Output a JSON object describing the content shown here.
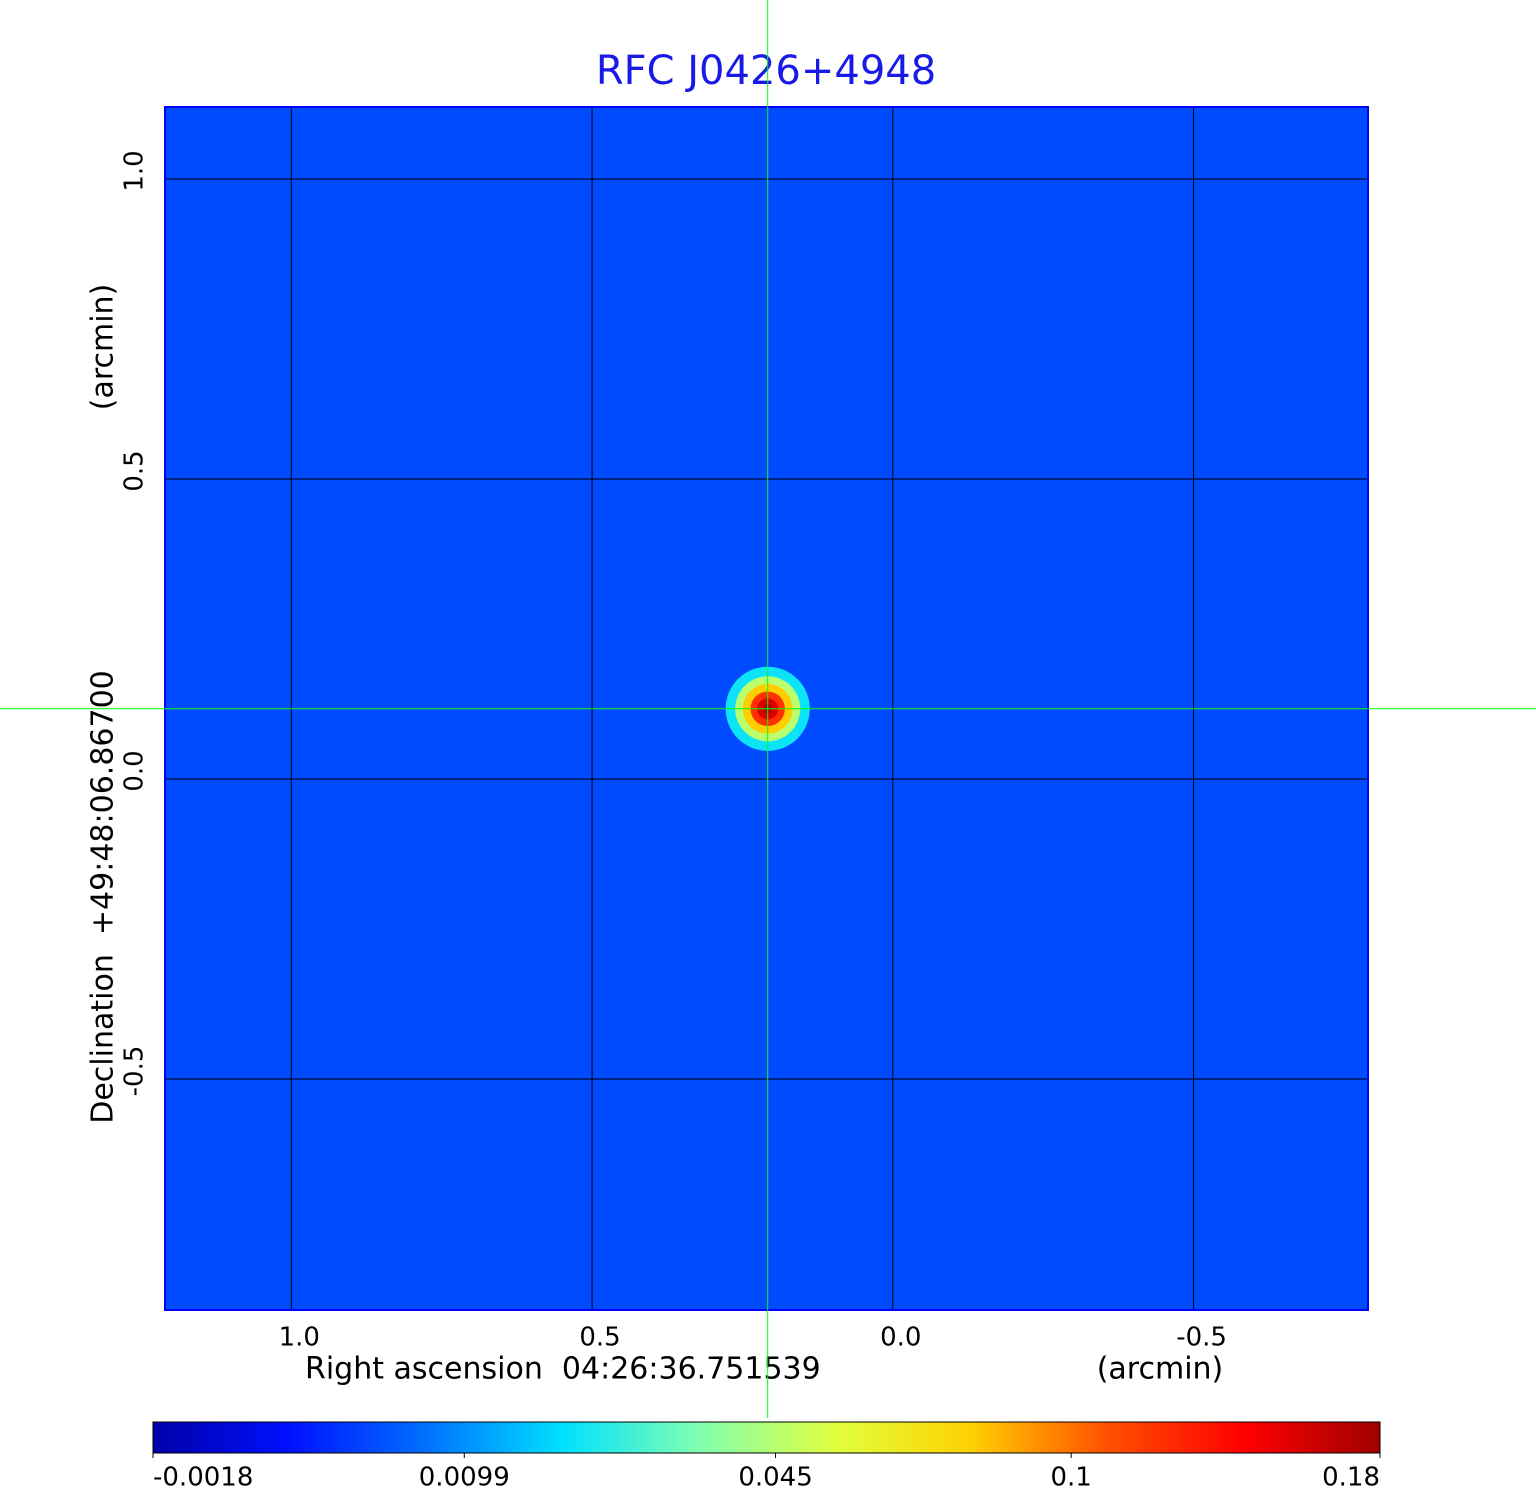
{
  "chart_data": {
    "type": "image",
    "title": "RFC J0426+4948",
    "x_label": "Right ascension  04:26:36.751539",
    "x_unit": "(arcmin)",
    "y_label": "Declination  +49:48:06.86700",
    "y_unit": "(arcmin)",
    "xlim": [
      1.21,
      -0.79
    ],
    "ylim": [
      -0.885,
      1.12
    ],
    "xticks": [
      {
        "value": 1,
        "label": "1.0"
      },
      0.5,
      {
        "value": 0,
        "label": "0.0"
      },
      -0.5
    ],
    "yticks": [
      {
        "value": 1,
        "label": "1.0"
      },
      0.5,
      {
        "value": 0,
        "label": "0.0"
      },
      -0.5
    ],
    "grid": true,
    "grid_color": "#000000",
    "background": 0.004,
    "source": {
      "x": 0.208,
      "y": 0.117,
      "peak": 0.18,
      "size": 0.05
    },
    "crosshair_color": "#00ff00",
    "title_color": "#1a1ae6",
    "clim": [
      -0.0018,
      0.18
    ],
    "color_scale": "sqrt",
    "colormap": [
      "#0000a8",
      "#0010ff",
      "#0070ff",
      "#00e0ff",
      "#80ffb0",
      "#e0ff40",
      "#ffd000",
      "#ff5000",
      "#ff0000",
      "#a00000"
    ],
    "colorbar_ticks": [
      -0.0018,
      0.0099,
      0.045,
      0.1,
      0.18
    ]
  }
}
